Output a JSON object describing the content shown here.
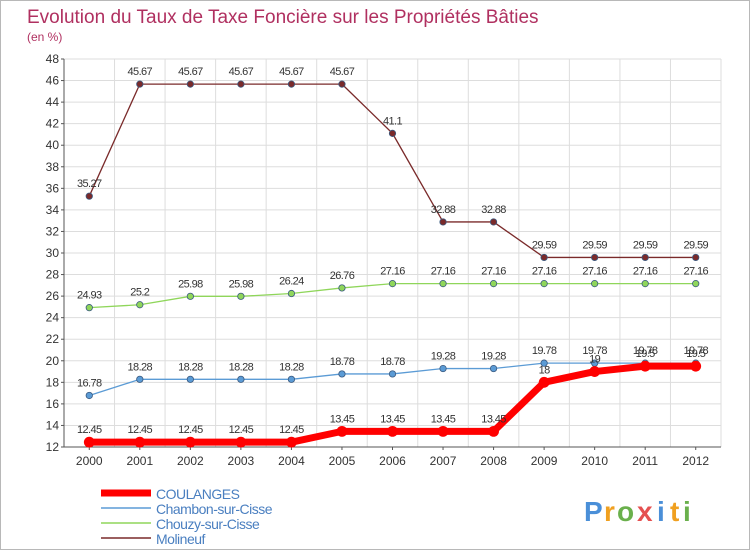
{
  "chart_data": {
    "type": "line",
    "title": "Evolution du Taux de Taxe Foncière sur les Propriétés Bâties",
    "subtitle": "(en %)",
    "xlabel": "",
    "ylabel": "",
    "ylim": [
      12,
      48
    ],
    "y_ticks": [
      12,
      14,
      16,
      18,
      20,
      22,
      24,
      26,
      28,
      30,
      32,
      34,
      36,
      38,
      40,
      42,
      44,
      46,
      48
    ],
    "categories": [
      "2000",
      "2001",
      "2002",
      "2003",
      "2004",
      "2005",
      "2006",
      "2007",
      "2008",
      "2009",
      "2010",
      "2011",
      "2012"
    ],
    "grid": true,
    "legend_position": "bottom-left",
    "series": [
      {
        "name": "Molineuf",
        "color": "#7a2a2a",
        "width": 1.3,
        "marker": true,
        "values": [
          35.27,
          45.67,
          45.67,
          45.67,
          45.67,
          45.67,
          41.1,
          32.88,
          32.88,
          29.59,
          29.59,
          29.59,
          29.59
        ],
        "labels": [
          "35.27",
          "45.67",
          "45.67",
          "45.67",
          "45.67",
          "45.67",
          "41.1",
          "32.88",
          "32.88",
          "29.59",
          "29.59",
          "29.59",
          "29.59"
        ]
      },
      {
        "name": "Chouzy-sur-Cisse",
        "color": "#8fd65a",
        "width": 1.3,
        "marker": true,
        "values": [
          24.93,
          25.2,
          25.98,
          25.98,
          26.24,
          26.76,
          27.16,
          27.16,
          27.16,
          27.16,
          27.16,
          27.16,
          27.16
        ],
        "labels": [
          "24.93",
          "25.2",
          "25.98",
          "25.98",
          "26.24",
          "26.76",
          "27.16",
          "27.16",
          "27.16",
          "27.16",
          "27.16",
          "27.16",
          "27.16"
        ]
      },
      {
        "name": "Chambon-sur-Cisse",
        "color": "#5b9bd5",
        "width": 1.3,
        "marker": true,
        "values": [
          16.78,
          18.28,
          18.28,
          18.28,
          18.28,
          18.78,
          18.78,
          19.28,
          19.28,
          19.78,
          19.78,
          19.78,
          19.78
        ],
        "labels": [
          "16.78",
          "18.28",
          "18.28",
          "18.28",
          "18.28",
          "18.78",
          "18.78",
          "19.28",
          "19.28",
          "19.78",
          "19.78",
          "19.78",
          "19.78"
        ]
      },
      {
        "name": "COULANGES",
        "color": "#ff0000",
        "width": 7,
        "marker": true,
        "values": [
          12.45,
          12.45,
          12.45,
          12.45,
          12.45,
          13.45,
          13.45,
          13.45,
          13.45,
          18,
          19,
          19.5,
          19.5
        ],
        "labels": [
          "12.45",
          "12.45",
          "12.45",
          "12.45",
          "12.45",
          "13.45",
          "13.45",
          "13.45",
          "13.45",
          "18",
          "19",
          "19.5",
          "19.5"
        ]
      }
    ],
    "legend": [
      "COULANGES",
      "Chambon-sur-Cisse",
      "Chouzy-sur-Cisse",
      "Molineuf"
    ]
  },
  "brand": {
    "letters": [
      "P",
      "r",
      "o",
      "x",
      "i",
      "t",
      "i"
    ],
    "colors": [
      "#4a8fd8",
      "#f0a020",
      "#6ab04c",
      "#e55050",
      "#4a8fd8",
      "#f0a020",
      "#6ab04c"
    ]
  }
}
